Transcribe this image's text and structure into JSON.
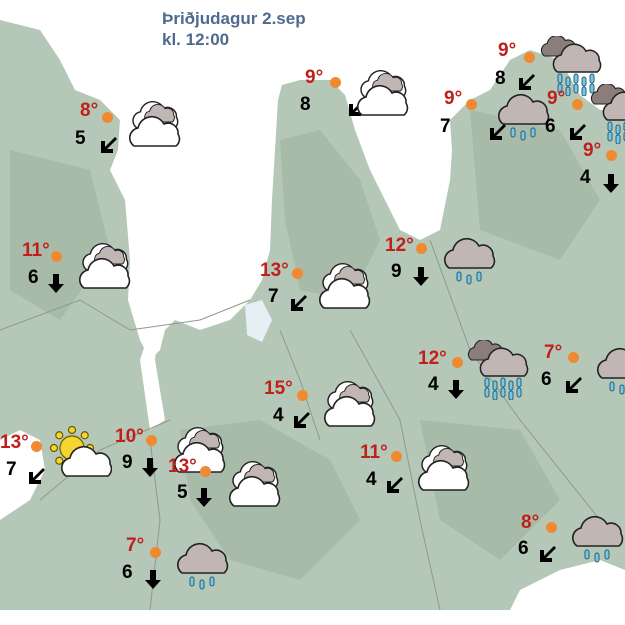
{
  "header": {
    "day": "Þriðjudagur 2.sep",
    "time": "kl. 12:00"
  },
  "colors": {
    "land": "#b5c7b6",
    "sea": "#ffffff",
    "temperature": "#c0201c",
    "station_dot": "#f08a30",
    "title": "#4e6a8e"
  },
  "stations": [
    {
      "temp": "8°",
      "wind": "5",
      "wind_dir": "sw",
      "icon": "partly-cloudy"
    },
    {
      "temp": "9°",
      "wind": "8",
      "wind_dir": "sw",
      "icon": "partly-cloudy"
    },
    {
      "temp": "9°",
      "wind": "8",
      "wind_dir": "sw",
      "icon": "heavy-rain"
    },
    {
      "temp": "9°",
      "wind": "7",
      "wind_dir": "sw",
      "icon": "rain"
    },
    {
      "temp": "9°",
      "wind": "6",
      "wind_dir": "sw",
      "icon": "heavy-rain"
    },
    {
      "temp": "9°",
      "wind": "4",
      "wind_dir": "s",
      "icon": "cloudy"
    },
    {
      "temp": "11°",
      "wind": "6",
      "wind_dir": "s",
      "icon": "partly-cloudy"
    },
    {
      "temp": "13°",
      "wind": "7",
      "wind_dir": "sw",
      "icon": "partly-cloudy"
    },
    {
      "temp": "12°",
      "wind": "9",
      "wind_dir": "s",
      "icon": "rain"
    },
    {
      "temp": "12°",
      "wind": "4",
      "wind_dir": "s",
      "icon": "heavy-rain"
    },
    {
      "temp": "7°",
      "wind": "6",
      "wind_dir": "sw",
      "icon": "rain"
    },
    {
      "temp": "15°",
      "wind": "4",
      "wind_dir": "sw",
      "icon": "partly-cloudy"
    },
    {
      "temp": "13°",
      "wind": "7",
      "wind_dir": "sw",
      "icon": "sun-cloud"
    },
    {
      "temp": "10°",
      "wind": "9",
      "wind_dir": "s",
      "icon": "partly-cloudy"
    },
    {
      "temp": "13°",
      "wind": "5",
      "wind_dir": "s",
      "icon": "partly-cloudy"
    },
    {
      "temp": "11°",
      "wind": "4",
      "wind_dir": "sw",
      "icon": "partly-cloudy"
    },
    {
      "temp": "8°",
      "wind": "6",
      "wind_dir": "sw",
      "icon": "rain"
    },
    {
      "temp": "7°",
      "wind": "6",
      "wind_dir": "s",
      "icon": "rain"
    }
  ]
}
